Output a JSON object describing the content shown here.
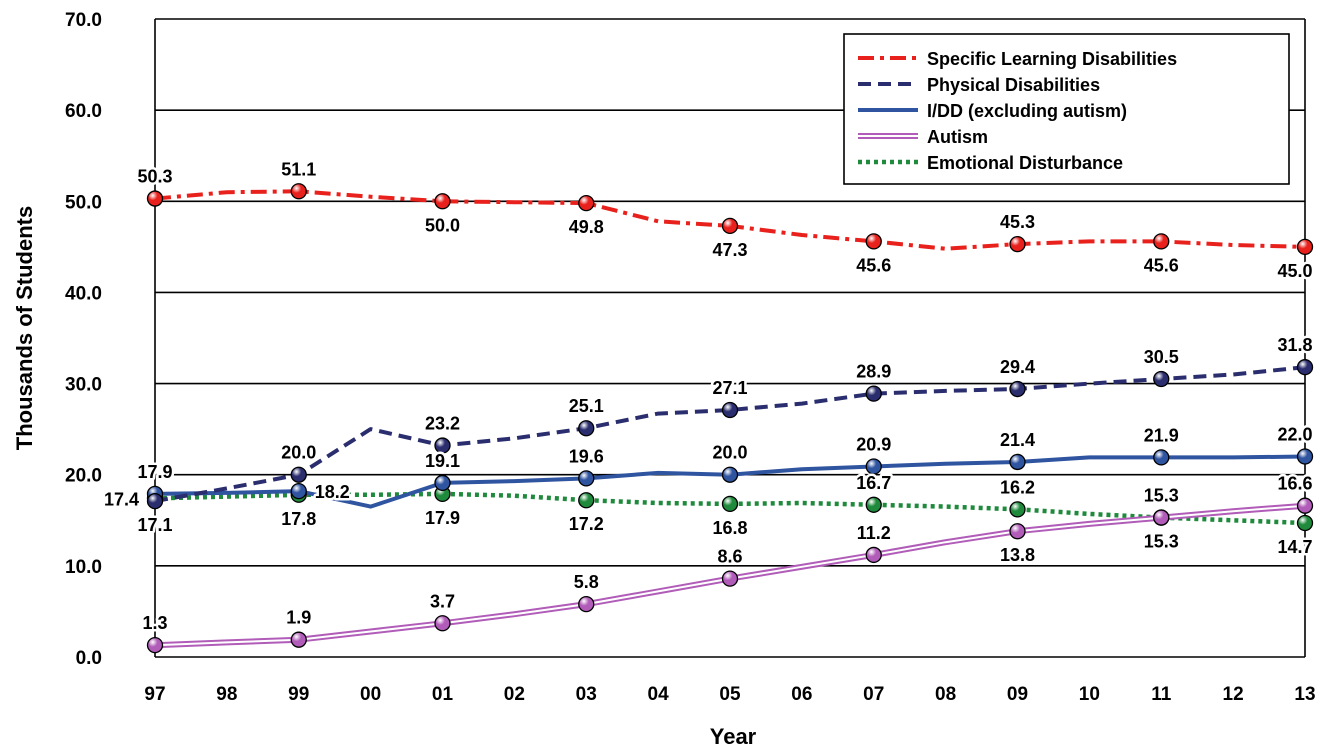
{
  "chart_data": {
    "type": "line",
    "title": "",
    "xlabel": "Year",
    "ylabel": "Thousands of Students",
    "categories": [
      "97",
      "98",
      "99",
      "00",
      "01",
      "02",
      "03",
      "04",
      "05",
      "06",
      "07",
      "08",
      "09",
      "10",
      "11",
      "12",
      "13"
    ],
    "ylim": [
      0,
      70
    ],
    "yticks": [
      "0.0",
      "10.0",
      "20.0",
      "30.0",
      "40.0",
      "50.0",
      "60.0",
      "70.0"
    ],
    "grid": "horizontal",
    "legend_position": "top-right",
    "series": [
      {
        "name": "Specific Learning Disabilities",
        "color": "#e8211d",
        "style": "dash-dot",
        "values": [
          50.3,
          51.0,
          51.1,
          50.5,
          50.0,
          49.9,
          49.8,
          47.8,
          47.3,
          46.3,
          45.6,
          44.8,
          45.3,
          45.6,
          45.6,
          45.2,
          45.0
        ],
        "labeled_points": [
          {
            "i": 0,
            "label": "50.3"
          },
          {
            "i": 2,
            "label": "51.1"
          },
          {
            "i": 4,
            "label": "50.0"
          },
          {
            "i": 6,
            "label": "49.8"
          },
          {
            "i": 8,
            "label": "47.3"
          },
          {
            "i": 10,
            "label": "45.6"
          },
          {
            "i": 12,
            "label": "45.3"
          },
          {
            "i": 14,
            "label": "45.6"
          },
          {
            "i": 16,
            "label": "45.0"
          }
        ]
      },
      {
        "name": "Physical Disabilities",
        "color": "#2b2e6e",
        "style": "dashed",
        "values": [
          17.1,
          18.5,
          20.0,
          25.0,
          23.2,
          24.0,
          25.1,
          26.7,
          27.1,
          27.8,
          28.9,
          29.2,
          29.4,
          30.0,
          30.5,
          31.0,
          31.8
        ],
        "labeled_points": [
          {
            "i": 0,
            "label": "17.1"
          },
          {
            "i": 2,
            "label": "20.0"
          },
          {
            "i": 4,
            "label": "23.2"
          },
          {
            "i": 6,
            "label": "25.1"
          },
          {
            "i": 8,
            "label": "27.1"
          },
          {
            "i": 10,
            "label": "28.9"
          },
          {
            "i": 12,
            "label": "29.4"
          },
          {
            "i": 14,
            "label": "30.5"
          },
          {
            "i": 16,
            "label": "31.8"
          }
        ]
      },
      {
        "name": "I/DD (excluding autism)",
        "color": "#2f54a0",
        "style": "solid",
        "values": [
          17.9,
          18.0,
          18.2,
          16.5,
          19.1,
          19.3,
          19.6,
          20.2,
          20.0,
          20.6,
          20.9,
          21.2,
          21.4,
          21.9,
          21.9,
          21.9,
          22.0
        ],
        "labeled_points": [
          {
            "i": 0,
            "label": "17.9"
          },
          {
            "i": 2,
            "label": "18.2"
          },
          {
            "i": 4,
            "label": "19.1"
          },
          {
            "i": 6,
            "label": "19.6"
          },
          {
            "i": 8,
            "label": "20.0"
          },
          {
            "i": 10,
            "label": "20.9"
          },
          {
            "i": 12,
            "label": "21.4"
          },
          {
            "i": 14,
            "label": "21.9"
          },
          {
            "i": 16,
            "label": "22.0"
          }
        ]
      },
      {
        "name": "Autism",
        "color": "#b05cb8",
        "style": "double",
        "values": [
          1.3,
          1.6,
          1.9,
          2.8,
          3.7,
          4.7,
          5.8,
          7.2,
          8.6,
          9.9,
          11.2,
          12.6,
          13.8,
          14.6,
          15.3,
          16.0,
          16.6
        ],
        "labeled_points": [
          {
            "i": 0,
            "label": "1.3"
          },
          {
            "i": 2,
            "label": "1.9"
          },
          {
            "i": 4,
            "label": "3.7"
          },
          {
            "i": 6,
            "label": "5.8"
          },
          {
            "i": 8,
            "label": "8.6"
          },
          {
            "i": 10,
            "label": "11.2"
          },
          {
            "i": 12,
            "label": "13.8"
          },
          {
            "i": 14,
            "label": "15.3"
          },
          {
            "i": 16,
            "label": "16.6"
          }
        ]
      },
      {
        "name": "Emotional Disturbance",
        "color": "#1f8a3c",
        "style": "dotted",
        "values": [
          17.4,
          17.6,
          17.8,
          17.8,
          17.9,
          17.7,
          17.2,
          16.9,
          16.8,
          16.9,
          16.7,
          16.5,
          16.2,
          15.7,
          15.3,
          15.0,
          14.7
        ],
        "labeled_points": [
          {
            "i": 0,
            "label": "17.4"
          },
          {
            "i": 2,
            "label": "17.8"
          },
          {
            "i": 4,
            "label": "17.9"
          },
          {
            "i": 6,
            "label": "17.2"
          },
          {
            "i": 8,
            "label": "16.8"
          },
          {
            "i": 10,
            "label": "16.7"
          },
          {
            "i": 12,
            "label": "16.2"
          },
          {
            "i": 14,
            "label": "15.3"
          },
          {
            "i": 16,
            "label": "14.7"
          }
        ]
      }
    ]
  }
}
